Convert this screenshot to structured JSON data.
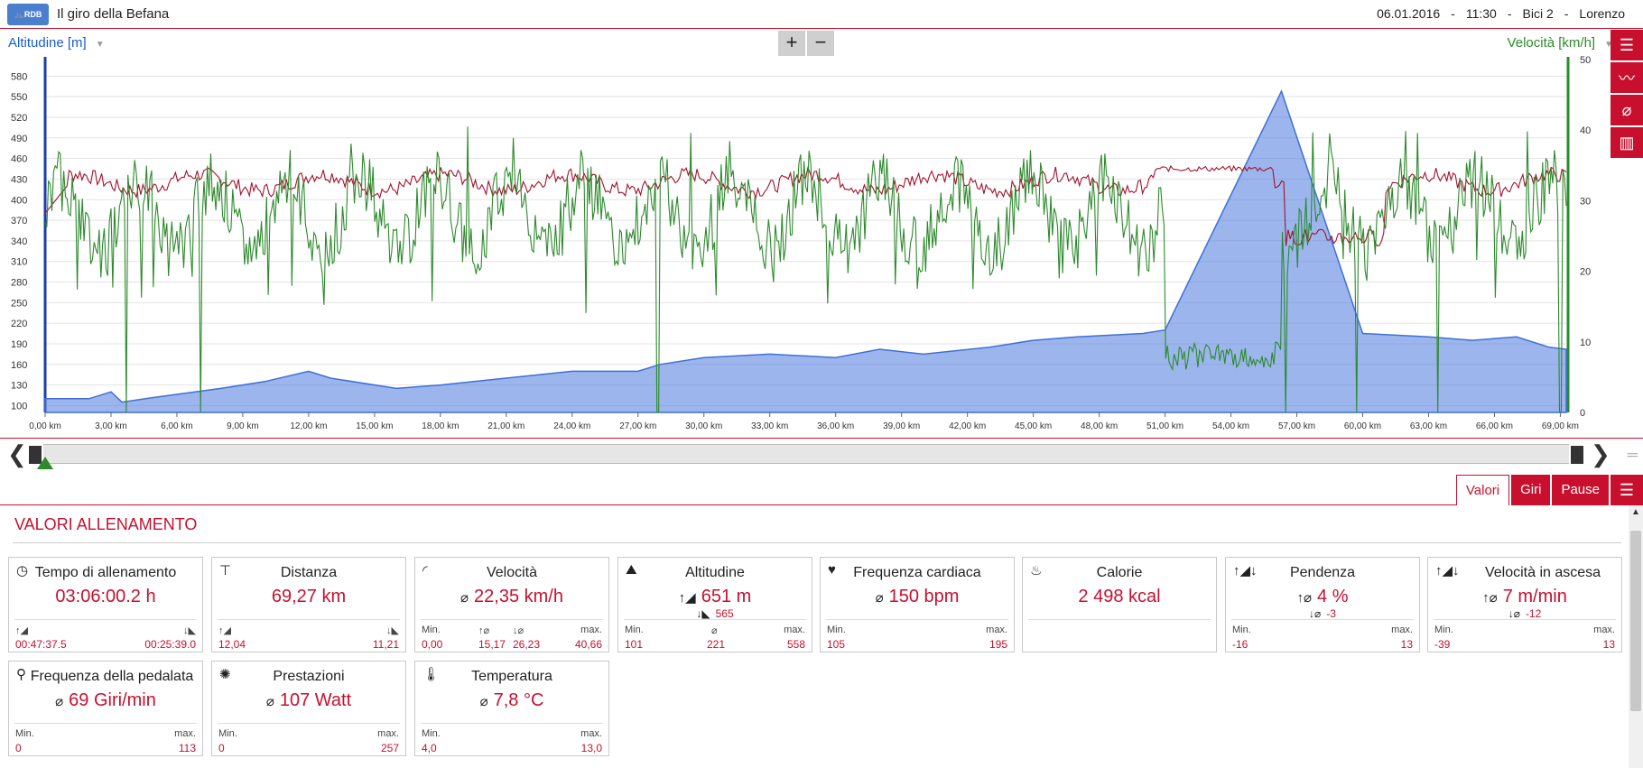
{
  "header": {
    "logo_text": "RDB",
    "title": "Il giro della Befana",
    "date": "06.01.2016",
    "time": "11:30",
    "bike": "Bici 2",
    "rider": "Lorenzo",
    "separator": "-"
  },
  "chart": {
    "zoom_in": "+",
    "zoom_out": "−",
    "tools": [
      "list-icon",
      "line-chart-icon",
      "average-icon",
      "bar-chart-icon"
    ]
  },
  "chart_data": {
    "type": "line",
    "left_axis_label": "Altitudine [m]",
    "right_axis_label": "Velocità [km/h]",
    "left_ticks": [
      100,
      130,
      160,
      190,
      220,
      250,
      280,
      310,
      340,
      370,
      400,
      430,
      460,
      490,
      520,
      550,
      580
    ],
    "right_ticks": [
      0,
      10,
      20,
      30,
      40,
      50
    ],
    "x_ticks": [
      "0,00 km",
      "3,00 km",
      "6,00 km",
      "9,00 km",
      "12,00 km",
      "15,00 km",
      "18,00 km",
      "21,00 km",
      "24,00 km",
      "27,00 km",
      "30,00 km",
      "33,00 km",
      "36,00 km",
      "39,00 km",
      "42,00 km",
      "45,00 km",
      "48,00 km",
      "51,00 km",
      "54,00 km",
      "57,00 km",
      "60,00 km",
      "63,00 km",
      "66,00 km",
      "69,00 km"
    ],
    "xlim_km": [
      0,
      69.27
    ],
    "altitude": {
      "name": "Altitudine",
      "color": "#3f6fd8",
      "km": [
        0,
        2,
        3,
        3.5,
        5,
        8,
        10,
        12,
        13,
        16,
        18,
        21,
        24,
        27,
        28,
        30,
        33,
        36,
        38,
        40,
        43,
        45,
        47,
        50,
        51,
        56.3,
        60,
        63,
        65,
        67,
        68.5,
        69.27
      ],
      "m": [
        110,
        110,
        120,
        105,
        112,
        125,
        135,
        150,
        140,
        125,
        130,
        140,
        150,
        150,
        160,
        170,
        175,
        170,
        182,
        175,
        185,
        195,
        200,
        205,
        210,
        558,
        205,
        200,
        195,
        200,
        185,
        182
      ]
    },
    "speed": {
      "name": "Velocità",
      "color": "#2d8a2d",
      "min": 0,
      "avg": 22.35,
      "max": 40.66
    },
    "heart_rate": {
      "name": "Frequenza cardiaca",
      "color": "#a3122c",
      "min": 105,
      "avg": 150,
      "max": 195
    }
  },
  "scroller": {
    "left": "❮",
    "right": "❯",
    "menu": "═"
  },
  "tabs": [
    "Valori",
    "Giri",
    "Pause"
  ],
  "section_title": "VALORI ALLENAMENTO",
  "cards": {
    "tempo": {
      "title": "Tempo di allenamento",
      "value": "03:06:00.2 h",
      "up": "00:47:37.5",
      "down": "00:25:39.0"
    },
    "distanza": {
      "title": "Distanza",
      "value": "69,27 km",
      "up": "12,04",
      "down": "11,21"
    },
    "velocita": {
      "title": "Velocità",
      "value": "22,35 km/h",
      "min_label": "Min.",
      "min": "0,00",
      "up": "15,17",
      "down": "26,23",
      "max_label": "max.",
      "max": "40,66"
    },
    "altitudine": {
      "title": "Altitudine",
      "value": "651 m",
      "sub": "565",
      "min_label": "Min.",
      "min": "101",
      "avg": "221",
      "max_label": "max.",
      "max": "558"
    },
    "frequenza": {
      "title": "Frequenza cardiaca",
      "value": "150 bpm",
      "min_label": "Min.",
      "min": "105",
      "max_label": "max.",
      "max": "195"
    },
    "calorie": {
      "title": "Calorie",
      "value": "2 498 kcal"
    },
    "pendenza": {
      "title": "Pendenza",
      "value": "4 %",
      "sub": "-3",
      "min_label": "Min.",
      "min": "-16",
      "max_label": "max.",
      "max": "13"
    },
    "ascesa": {
      "title": "Velocità in ascesa",
      "value": "7 m/min",
      "sub": "-12",
      "min_label": "Min.",
      "min": "-39",
      "max_label": "max.",
      "max": "13"
    },
    "pedalata": {
      "title": "Frequenza della pedalata",
      "value": "69 Giri/min",
      "min_label": "Min.",
      "min": "0",
      "max_label": "max.",
      "max": "113"
    },
    "prestazioni": {
      "title": "Prestazioni",
      "value": "107 Watt",
      "min_label": "Min.",
      "min": "0",
      "max_label": "max.",
      "max": "257"
    },
    "temperatura": {
      "title": "Temperatura",
      "value": "7,8 °C",
      "min_label": "Min.",
      "min": "4,0",
      "max_label": "max.",
      "max": "13,0"
    }
  }
}
